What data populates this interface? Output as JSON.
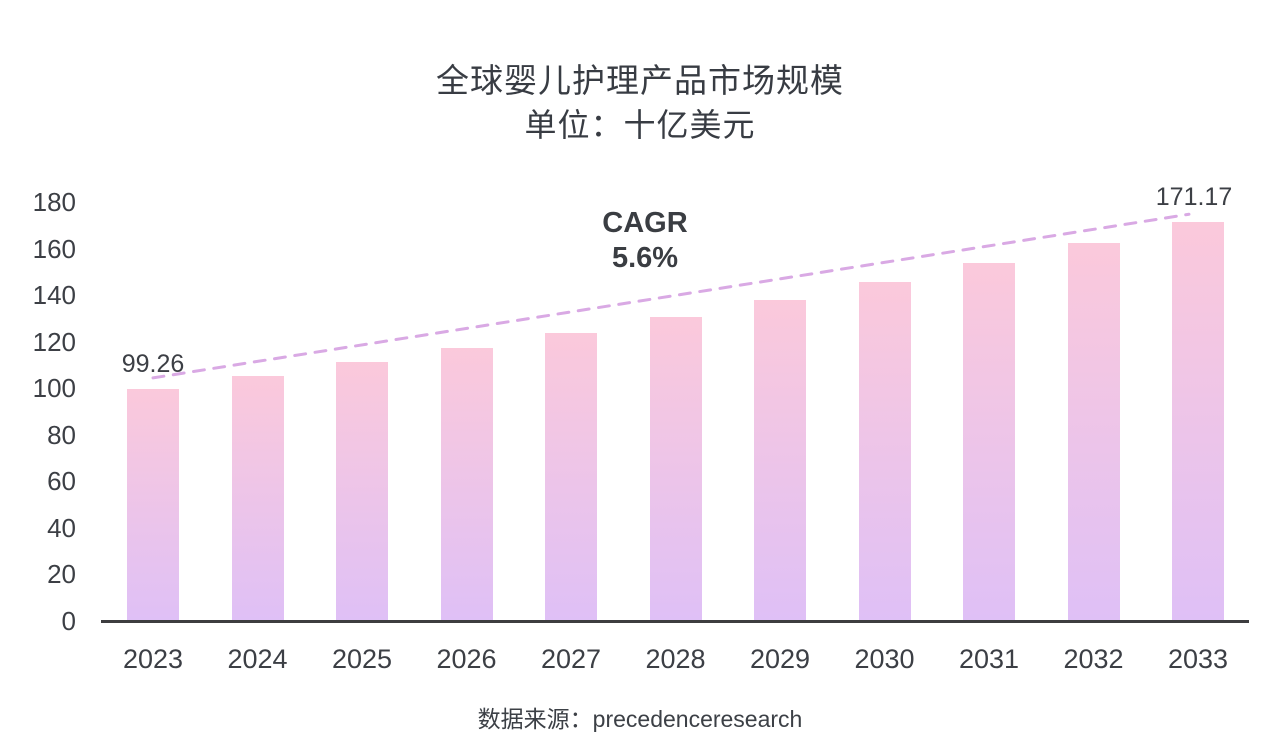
{
  "title": {
    "line1": "全球婴儿护理产品市场规模",
    "line2": "单位：十亿美元"
  },
  "annotation": {
    "line1": "CAGR",
    "line2": "5.6%"
  },
  "source": "数据来源：precedenceresearch",
  "chart_data": {
    "type": "bar",
    "title": "全球婴儿护理产品市场规模",
    "subtitle": "单位：十亿美元",
    "categories": [
      "2023",
      "2024",
      "2025",
      "2026",
      "2027",
      "2028",
      "2029",
      "2030",
      "2031",
      "2032",
      "2033"
    ],
    "values": [
      99.26,
      104.82,
      110.69,
      116.89,
      123.43,
      130.34,
      137.64,
      145.35,
      153.49,
      162.08,
      171.17
    ],
    "value_labels": {
      "2023": "99.26",
      "2033": "171.17"
    },
    "xlabel": "",
    "ylabel": "",
    "ylim": [
      0,
      180
    ],
    "ytick_step": 20,
    "grid": false,
    "legend": "none",
    "trendline": {
      "label": "CAGR 5.6%",
      "style": "dashed",
      "start_year": "2023",
      "start_value": 104,
      "end_year": "2033",
      "end_value": 174.3
    },
    "colors": {
      "bar_gradient_top": "#fbc9db",
      "bar_gradient_bottom": "#dfc0f6",
      "trendline": "#d9a9e4",
      "axis": "#3d3d3f",
      "text": "#3c3f45"
    }
  }
}
